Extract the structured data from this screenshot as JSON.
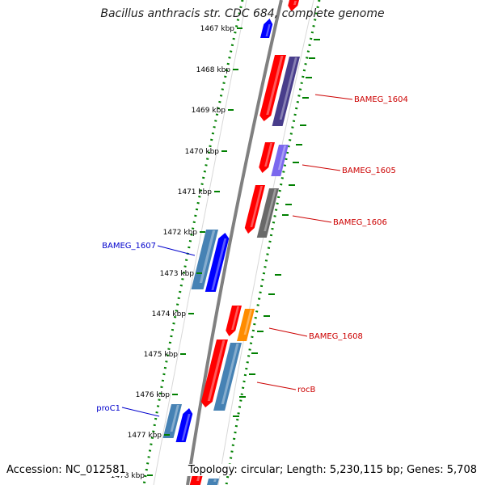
{
  "title": "Bacillus anthracis str. CDC 684, complete genome",
  "footer": {
    "accession": "Accession: NC_012581",
    "summary": "Topology: circular; Length: 5,230,115 bp; Genes: 5,708"
  },
  "scale_ticks": [
    "1467 kbp",
    "1468 kbp",
    "1469 kbp",
    "1470 kbp",
    "1471 kbp",
    "1472 kbp",
    "1473 kbp",
    "1474 kbp",
    "1475 kbp",
    "1476 kbp",
    "1477 kbp",
    "1478 kbp"
  ],
  "gene_labels": [
    {
      "name": "BAMEG_1604",
      "color": "#cc0000"
    },
    {
      "name": "BAMEG_1605",
      "color": "#cc0000"
    },
    {
      "name": "BAMEG_1606",
      "color": "#cc0000"
    },
    {
      "name": "BAMEG_1607",
      "color": "#0000cc"
    },
    {
      "name": "BAMEG_1608",
      "color": "#cc0000"
    },
    {
      "name": "rocB",
      "color": "#cc0000"
    },
    {
      "name": "proC1",
      "color": "#0000cc"
    }
  ],
  "colors": {
    "gene_red": "#ff0000",
    "gene_blue": "#0000ff",
    "steel_blue": "#4682b4",
    "dark_slate": "#483d8b",
    "medium_purple": "#7b68ee",
    "dim_gray": "#696969",
    "orange": "#ff8c00",
    "tick_green": "#008000",
    "backbone": "#808080"
  }
}
